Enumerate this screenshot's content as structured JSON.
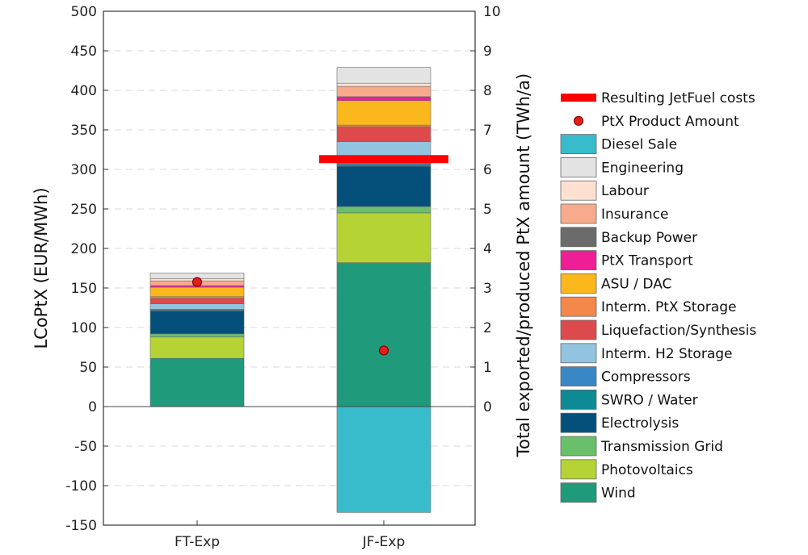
{
  "chart_data": {
    "type": "bar",
    "stacked": true,
    "categories": [
      "FT-Exp",
      "JF-Exp"
    ],
    "ylabel": "LCoPtX (EUR/MWh)",
    "ylabel_right": "Total exported/produced PtX amount (TWh/a)",
    "ylim": [
      -150,
      500
    ],
    "yticks": [
      -150,
      -100,
      -50,
      0,
      50,
      100,
      150,
      200,
      250,
      300,
      350,
      400,
      450,
      500
    ],
    "ylim_right": [
      -3,
      10
    ],
    "yticks_right": [
      0,
      1,
      2,
      3,
      4,
      5,
      6,
      7,
      8,
      9,
      10
    ],
    "grid": "dashed horizontal",
    "legend_position": "right",
    "series": [
      {
        "name": "Wind",
        "color": "#1f9a7b",
        "values": [
          61,
          182
        ]
      },
      {
        "name": "Photovoltaics",
        "color": "#b5d334",
        "values": [
          27,
          63
        ]
      },
      {
        "name": "Transmission Grid",
        "color": "#6abf6a",
        "values": [
          4,
          8
        ]
      },
      {
        "name": "Electrolysis",
        "color": "#05507a",
        "values": [
          29,
          51
        ]
      },
      {
        "name": "SWRO / Water",
        "color": "#0e8a94",
        "values": [
          1,
          2
        ]
      },
      {
        "name": "Compressors",
        "color": "#3a87c5",
        "values": [
          1,
          4
        ]
      },
      {
        "name": "Interm. H2 Storage",
        "color": "#92c4e0",
        "values": [
          7,
          25
        ]
      },
      {
        "name": "Liquefaction/Synthesis",
        "color": "#dc4a4c",
        "values": [
          7,
          19
        ]
      },
      {
        "name": "Interm. PtX Storage",
        "color": "#f4874a",
        "values": [
          2,
          2
        ]
      },
      {
        "name": "ASU / DAC",
        "color": "#fbb81c",
        "values": [
          12,
          31
        ]
      },
      {
        "name": "PtX Transport",
        "color": "#ee1e96",
        "values": [
          2,
          5
        ]
      },
      {
        "name": "Backup Power",
        "color": "#6b6b6b",
        "values": [
          0,
          0
        ]
      },
      {
        "name": "Insurance",
        "color": "#f7ab8c",
        "values": [
          6,
          13
        ]
      },
      {
        "name": "Labour",
        "color": "#fde0d2",
        "values": [
          3,
          4
        ]
      },
      {
        "name": "Engineering",
        "color": "#e2e3e2",
        "values": [
          7,
          20
        ]
      },
      {
        "name": "Diesel Sale",
        "color": "#38bccb",
        "values": [
          0,
          -134
        ]
      }
    ],
    "resulting_jetfuel_costs": {
      "name": "Resulting JetFuel costs",
      "color": "#ff0000",
      "values": [
        null,
        313
      ]
    },
    "ptx_product_amount": {
      "name": "PtX Product Amount",
      "color": "#e0201c",
      "values_twh": [
        3.15,
        1.42
      ]
    },
    "legend": [
      "Resulting JetFuel costs",
      "PtX Product Amount",
      "Diesel Sale",
      "Engineering",
      "Labour",
      "Insurance",
      "Backup Power",
      "PtX Transport",
      "ASU / DAC",
      "Interm. PtX Storage",
      "Liquefaction/Synthesis",
      "Interm. H2 Storage",
      "Compressors",
      "SWRO / Water",
      "Electrolysis",
      "Transmission Grid",
      "Photovoltaics",
      "Wind"
    ]
  }
}
